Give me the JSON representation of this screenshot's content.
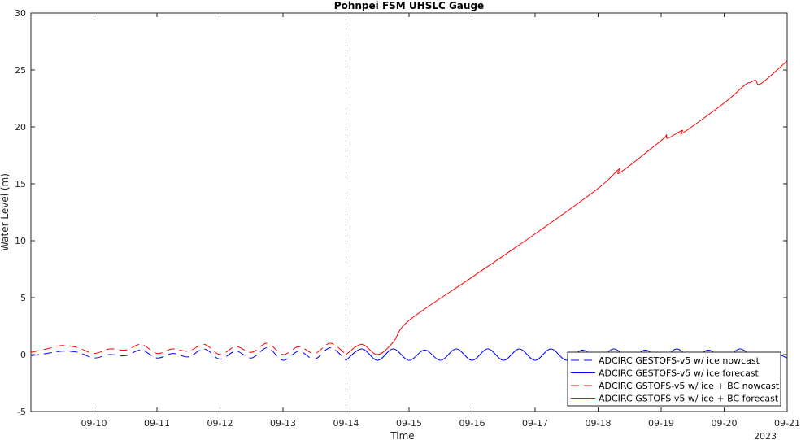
{
  "chart_data": {
    "type": "line",
    "title": "Pohnpei FSM UHSLC Gauge",
    "xlabel": "Time",
    "ylabel": "Water Level (m)",
    "x_range": [
      "2023-09-09T00:00",
      "2023-09-21T00:00"
    ],
    "ylim": [
      -5,
      30
    ],
    "y_ticks": [
      -5,
      0,
      5,
      10,
      15,
      20,
      25,
      30
    ],
    "x_ticks": [
      {
        "x": "2023-09-10",
        "label": "09-10"
      },
      {
        "x": "2023-09-11",
        "label": "09-11"
      },
      {
        "x": "2023-09-12",
        "label": "09-12"
      },
      {
        "x": "2023-09-13",
        "label": "09-13"
      },
      {
        "x": "2023-09-14",
        "label": "09-14"
      },
      {
        "x": "2023-09-15",
        "label": "09-15"
      },
      {
        "x": "2023-09-16",
        "label": "09-16"
      },
      {
        "x": "2023-09-17",
        "label": "09-17"
      },
      {
        "x": "2023-09-18",
        "label": "09-18"
      },
      {
        "x": "2023-09-19",
        "label": "09-19"
      },
      {
        "x": "2023-09-20",
        "label": "09-20"
      },
      {
        "x": "2023-09-21",
        "label": "09-21"
      }
    ],
    "year_label": "2023",
    "nowcast_marker": "2023-09-14T00:00",
    "legend_position": "bottom-right",
    "grid": false,
    "series": [
      {
        "name": "ADCIRC GESTOFS-v5 w/ ice nowcast",
        "color": "#0000ff",
        "style": "dashed",
        "x": [
          "2023-09-09T00:00",
          "2023-09-09T06:00",
          "2023-09-09T12:00",
          "2023-09-09T18:00",
          "2023-09-10T00:00",
          "2023-09-10T06:00",
          "2023-09-10T12:00",
          "2023-09-10T18:00",
          "2023-09-11T00:00",
          "2023-09-11T06:00",
          "2023-09-11T12:00",
          "2023-09-11T18:00",
          "2023-09-12T00:00",
          "2023-09-12T06:00",
          "2023-09-12T12:00",
          "2023-09-12T18:00",
          "2023-09-13T00:00",
          "2023-09-13T06:00",
          "2023-09-13T12:00",
          "2023-09-13T18:00",
          "2023-09-14T00:00"
        ],
        "y": [
          -0.1,
          0.1,
          0.3,
          0.2,
          -0.3,
          0.0,
          -0.1,
          0.4,
          -0.3,
          0.1,
          -0.2,
          0.5,
          -0.4,
          0.3,
          -0.3,
          0.6,
          -0.5,
          0.3,
          -0.4,
          0.6,
          -0.5
        ]
      },
      {
        "name": "ADCIRC GESTOFS-v5 w/ ice forecast",
        "color": "#0000ff",
        "style": "solid",
        "x": [
          "2023-09-14T00:00",
          "2023-09-14T06:00",
          "2023-09-14T12:00",
          "2023-09-14T18:00",
          "2023-09-15T00:00",
          "2023-09-15T06:00",
          "2023-09-15T12:00",
          "2023-09-15T18:00",
          "2023-09-16T00:00",
          "2023-09-16T06:00",
          "2023-09-16T12:00",
          "2023-09-16T18:00",
          "2023-09-17T00:00",
          "2023-09-17T06:00",
          "2023-09-17T12:00",
          "2023-09-17T18:00",
          "2023-09-18T00:00",
          "2023-09-18T06:00",
          "2023-09-18T12:00",
          "2023-09-18T18:00",
          "2023-09-19T00:00",
          "2023-09-19T06:00",
          "2023-09-19T12:00",
          "2023-09-19T18:00",
          "2023-09-20T00:00",
          "2023-09-20T06:00",
          "2023-09-20T12:00",
          "2023-09-20T18:00",
          "2023-09-21T00:00"
        ],
        "y": [
          -0.5,
          0.5,
          -0.5,
          0.5,
          -0.5,
          0.4,
          -0.5,
          0.5,
          -0.5,
          0.5,
          -0.5,
          0.5,
          -0.5,
          0.5,
          -0.5,
          0.4,
          -0.4,
          0.5,
          -0.4,
          0.4,
          -0.4,
          0.5,
          -0.4,
          0.4,
          -0.4,
          0.5,
          -0.3,
          0.2,
          -0.3
        ]
      },
      {
        "name": "ADCIRC GSTOFS-v5 w/ ice + BC nowcast",
        "color": "#ff0000",
        "style": "dashed",
        "x": [
          "2023-09-09T00:00",
          "2023-09-09T06:00",
          "2023-09-09T12:00",
          "2023-09-09T18:00",
          "2023-09-10T00:00",
          "2023-09-10T06:00",
          "2023-09-10T12:00",
          "2023-09-10T18:00",
          "2023-09-11T00:00",
          "2023-09-11T06:00",
          "2023-09-11T12:00",
          "2023-09-11T18:00",
          "2023-09-12T00:00",
          "2023-09-12T06:00",
          "2023-09-12T12:00",
          "2023-09-12T18:00",
          "2023-09-13T00:00",
          "2023-09-13T06:00",
          "2023-09-13T12:00",
          "2023-09-13T18:00",
          "2023-09-14T00:00"
        ],
        "y": [
          0.2,
          0.5,
          0.8,
          0.6,
          0.1,
          0.5,
          0.4,
          0.9,
          0.1,
          0.5,
          0.3,
          0.9,
          0.0,
          0.7,
          0.2,
          1.0,
          0.0,
          0.7,
          0.1,
          1.0,
          0.0
        ]
      },
      {
        "name": "ADCIRC GSTOFS-v5 w/ ice + BC forecast",
        "color": "#ff0000",
        "style": "solid",
        "x": [
          "2023-09-14T00:00",
          "2023-09-14T06:00",
          "2023-09-14T12:00",
          "2023-09-14T18:00",
          "2023-09-15T00:00",
          "2023-09-16T00:00",
          "2023-09-17T00:00",
          "2023-09-18T00:00",
          "2023-09-18T08:00",
          "2023-09-18T08:30",
          "2023-09-19T00:00",
          "2023-09-19T02:00",
          "2023-09-19T02:30",
          "2023-09-19T08:00",
          "2023-09-19T08:30",
          "2023-09-20T00:00",
          "2023-09-20T08:00",
          "2023-09-20T10:00",
          "2023-09-20T12:00",
          "2023-09-20T14:00",
          "2023-09-21T00:00"
        ],
        "y": [
          0.0,
          0.9,
          0.0,
          1.1,
          3.0,
          6.8,
          10.6,
          14.6,
          16.3,
          16.0,
          18.8,
          19.3,
          19.0,
          19.7,
          19.5,
          22.1,
          23.7,
          23.9,
          24.1,
          23.8,
          25.8
        ]
      }
    ]
  }
}
